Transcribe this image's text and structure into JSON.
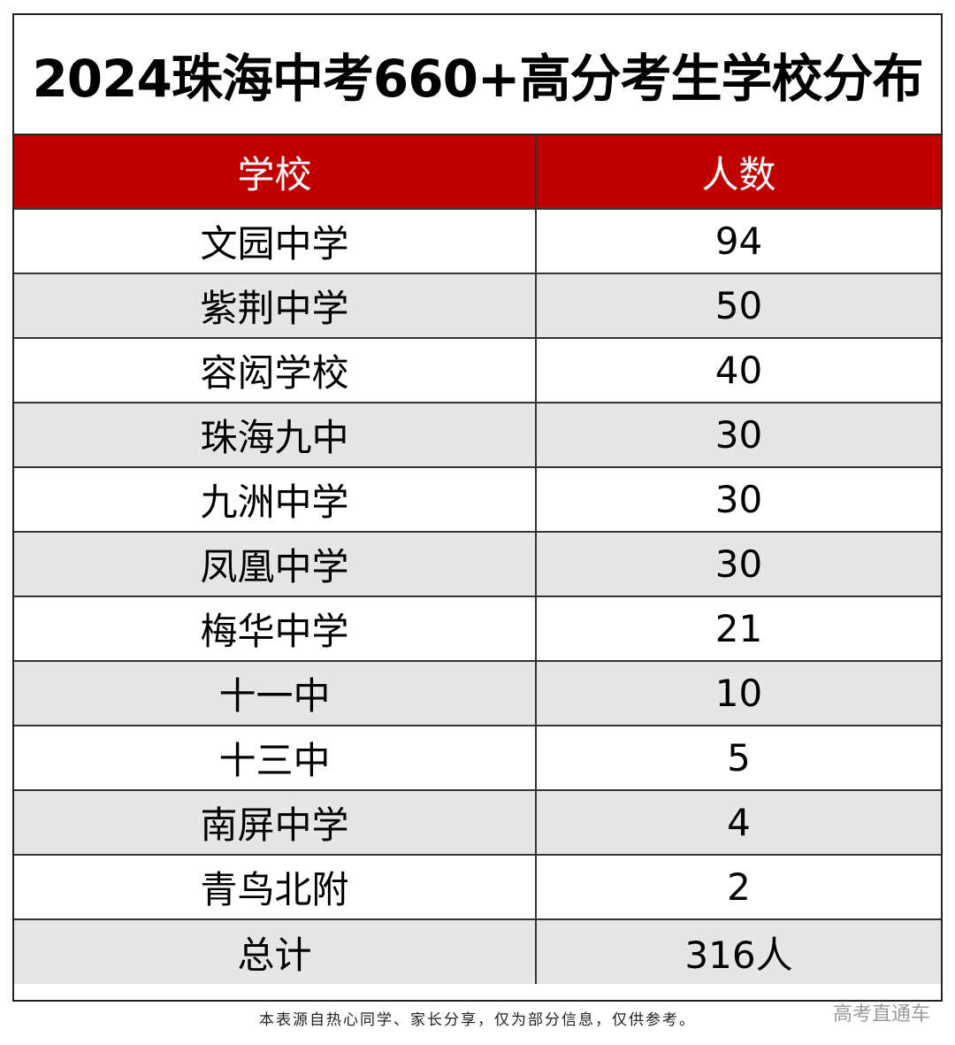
{
  "title": "2024珠海中考660+高分考生学校分布",
  "table": {
    "headers": [
      "学校",
      "人数"
    ],
    "rows": [
      {
        "school": "文园中学",
        "count": "94"
      },
      {
        "school": "紫荆中学",
        "count": "50"
      },
      {
        "school": "容闳学校",
        "count": "40"
      },
      {
        "school": "珠海九中",
        "count": "30"
      },
      {
        "school": "九洲中学",
        "count": "30"
      },
      {
        "school": "凤凰中学",
        "count": "30"
      },
      {
        "school": "梅华中学",
        "count": "21"
      },
      {
        "school": "十一中",
        "count": "10"
      },
      {
        "school": "十三中",
        "count": "5"
      },
      {
        "school": "南屏中学",
        "count": "4"
      },
      {
        "school": "青鸟北附",
        "count": "2"
      }
    ],
    "total": {
      "label": "总计",
      "value": "316人"
    }
  },
  "footnote": "本表源自热心同学、家长分享，仅为部分信息，仅供参考。",
  "watermark": "高考直通车",
  "colors": {
    "header_bg": "#c00000",
    "header_text": "#ffffff",
    "alt_row_bg": "#e6e6e6"
  }
}
